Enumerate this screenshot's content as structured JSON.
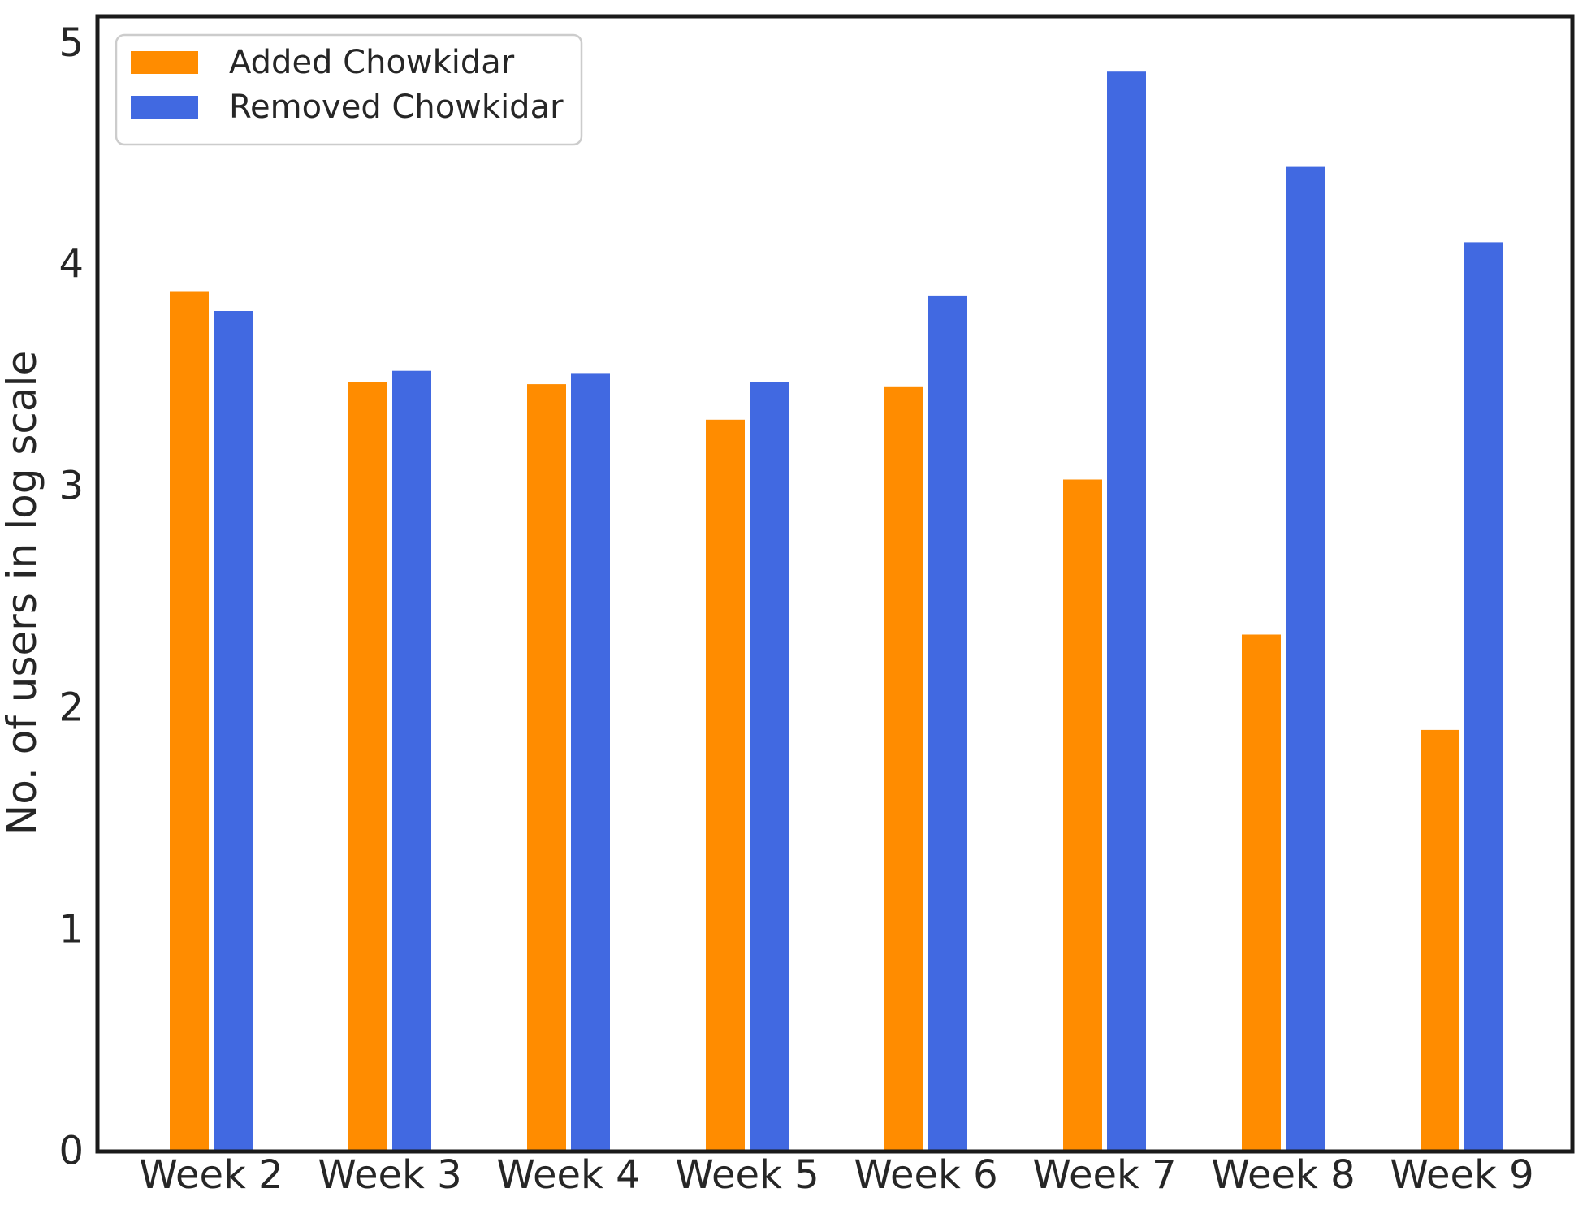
{
  "chart_data": {
    "type": "bar",
    "categories": [
      "Week 2",
      "Week 3",
      "Week 4",
      "Week 5",
      "Week 6",
      "Week 7",
      "Week 8",
      "Week 9"
    ],
    "series": [
      {
        "name": "Added Chowkidar",
        "color": "#ff8c00",
        "values": [
          3.88,
          3.47,
          3.46,
          3.3,
          3.45,
          3.03,
          2.33,
          1.9
        ]
      },
      {
        "name": "Removed Chowkidar",
        "color": "#4169e1",
        "values": [
          3.79,
          3.52,
          3.51,
          3.47,
          3.86,
          4.87,
          4.44,
          4.1
        ]
      }
    ],
    "title": "",
    "xlabel": "",
    "ylabel": "No. of users in log scale",
    "yticks": [
      "0",
      "1",
      "2",
      "3",
      "4",
      "5"
    ],
    "ylim": [
      0,
      5.12
    ],
    "grid": false,
    "legend_position": "upper left",
    "colors": {
      "text": "#262626",
      "spine": "#1a1a1a",
      "background": "#ffffff",
      "legend_border": "#cccccc",
      "legend_background": "#ffffff"
    }
  }
}
